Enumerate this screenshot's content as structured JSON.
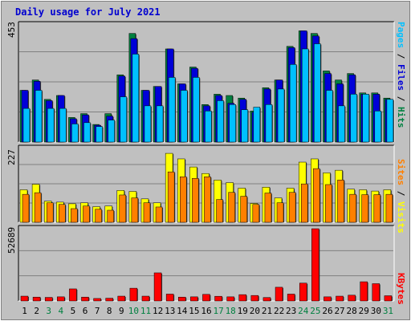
{
  "title": "Daily usage for July 2021",
  "colors": {
    "hits": "#008040",
    "files": "#0000d8",
    "pages": "#00c0ff",
    "visits": "#ffff00",
    "sites": "#ff8000",
    "kbytes": "#ff0000",
    "weekend": "#008040",
    "weekday": "#000000"
  },
  "chart_data": [
    {
      "type": "bar",
      "y_max_label": "453",
      "ylim": [
        0,
        453
      ],
      "right_label": {
        "pages": "Pages",
        "files": "Files",
        "hits": "Hits",
        "sep": " / "
      },
      "x": [
        "1",
        "2",
        "3",
        "4",
        "5",
        "6",
        "7",
        "8",
        "9",
        "10",
        "11",
        "12",
        "13",
        "14",
        "15",
        "16",
        "17",
        "18",
        "19",
        "20",
        "21",
        "22",
        "23",
        "24",
        "25",
        "26",
        "27",
        "28",
        "29",
        "30",
        "31"
      ],
      "series": [
        {
          "name": "Hits",
          "values": [
            200,
            240,
            165,
            180,
            95,
            110,
            68,
            110,
            260,
            420,
            200,
            215,
            360,
            225,
            290,
            145,
            185,
            180,
            170,
            120,
            210,
            240,
            370,
            430,
            420,
            275,
            240,
            265,
            190,
            190,
            170
          ]
        },
        {
          "name": "Files",
          "values": [
            200,
            235,
            160,
            180,
            90,
            105,
            65,
            100,
            255,
            400,
            200,
            215,
            360,
            225,
            285,
            140,
            180,
            150,
            165,
            115,
            205,
            240,
            365,
            430,
            410,
            265,
            225,
            260,
            185,
            185,
            165
          ]
        },
        {
          "name": "Pages",
          "values": [
            130,
            200,
            130,
            130,
            70,
            75,
            60,
            85,
            175,
            340,
            140,
            140,
            250,
            200,
            250,
            120,
            160,
            145,
            125,
            135,
            145,
            205,
            300,
            360,
            380,
            200,
            140,
            185,
            185,
            120,
            165
          ]
        }
      ]
    },
    {
      "type": "bar",
      "y_max_label": "227",
      "ylim": [
        0,
        227
      ],
      "right_label": {
        "visits": "Visits",
        "sites": "Sites",
        "sep": " / "
      },
      "x": [
        "1",
        "2",
        "3",
        "4",
        "5",
        "6",
        "7",
        "8",
        "9",
        "10",
        "11",
        "12",
        "13",
        "14",
        "15",
        "16",
        "17",
        "18",
        "19",
        "20",
        "21",
        "22",
        "23",
        "24",
        "25",
        "26",
        "27",
        "28",
        "29",
        "30",
        "31"
      ],
      "series": [
        {
          "name": "Visits",
          "values": [
            100,
            117,
            65,
            62,
            57,
            60,
            48,
            50,
            98,
            95,
            72,
            60,
            212,
            195,
            170,
            150,
            130,
            122,
            105,
            58,
            108,
            75,
            105,
            185,
            195,
            152,
            160,
            102,
            100,
            96,
            100
          ]
        },
        {
          "name": "Sites",
          "values": [
            86,
            91,
            60,
            55,
            42,
            50,
            40,
            37,
            84,
            75,
            60,
            47,
            155,
            140,
            135,
            140,
            70,
            92,
            80,
            55,
            90,
            60,
            92,
            118,
            165,
            116,
            130,
            86,
            85,
            85,
            86
          ]
        }
      ]
    },
    {
      "type": "bar",
      "y_max_label": "52689",
      "ylim": [
        0,
        52689
      ],
      "right_label": {
        "kbytes": "KBytes"
      },
      "x": [
        "1",
        "2",
        "3",
        "4",
        "5",
        "6",
        "7",
        "8",
        "9",
        "10",
        "11",
        "12",
        "13",
        "14",
        "15",
        "16",
        "17",
        "18",
        "19",
        "20",
        "21",
        "22",
        "23",
        "24",
        "25",
        "26",
        "27",
        "28",
        "29",
        "30",
        "31"
      ],
      "series": [
        {
          "name": "KBytes",
          "values": [
            3500,
            2800,
            2600,
            3000,
            8800,
            2800,
            1800,
            2000,
            3500,
            9300,
            3500,
            20500,
            5000,
            2800,
            3000,
            4800,
            3400,
            3000,
            4600,
            4000,
            2500,
            10000,
            5000,
            13000,
            52689,
            3000,
            3500,
            4200,
            14000,
            12600,
            3800
          ]
        }
      ]
    }
  ]
}
